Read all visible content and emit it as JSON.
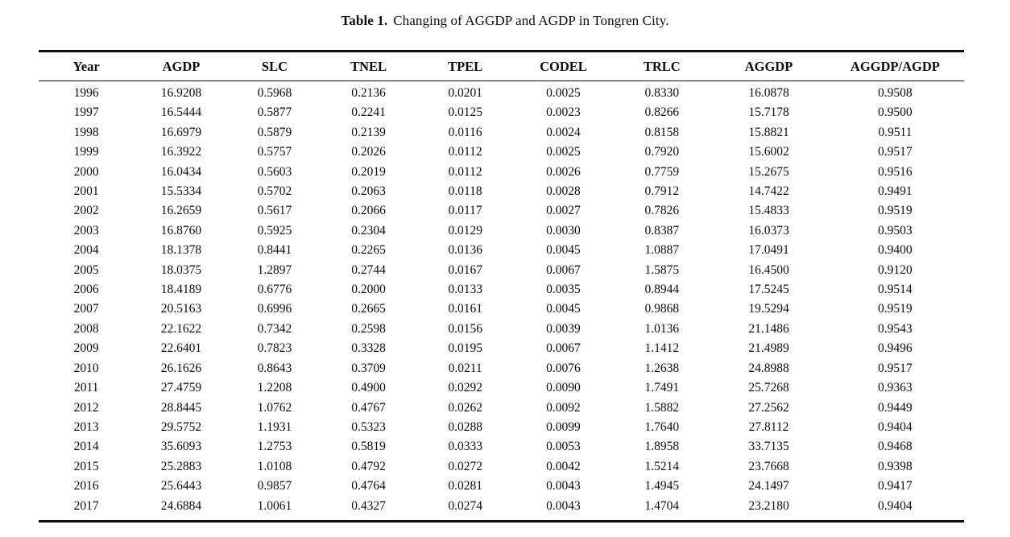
{
  "caption": {
    "label": "Table 1.",
    "text": "Changing of AGGDP and AGDP in Tongren City."
  },
  "table": {
    "columns": [
      "Year",
      "AGDP",
      "SLC",
      "TNEL",
      "TPEL",
      "CODEL",
      "TRLC",
      "AGGDP",
      "AGGDP/AGDP"
    ],
    "rows": [
      [
        "1996",
        "16.9208",
        "0.5968",
        "0.2136",
        "0.0201",
        "0.0025",
        "0.8330",
        "16.0878",
        "0.9508"
      ],
      [
        "1997",
        "16.5444",
        "0.5877",
        "0.2241",
        "0.0125",
        "0.0023",
        "0.8266",
        "15.7178",
        "0.9500"
      ],
      [
        "1998",
        "16.6979",
        "0.5879",
        "0.2139",
        "0.0116",
        "0.0024",
        "0.8158",
        "15.8821",
        "0.9511"
      ],
      [
        "1999",
        "16.3922",
        "0.5757",
        "0.2026",
        "0.0112",
        "0.0025",
        "0.7920",
        "15.6002",
        "0.9517"
      ],
      [
        "2000",
        "16.0434",
        "0.5603",
        "0.2019",
        "0.0112",
        "0.0026",
        "0.7759",
        "15.2675",
        "0.9516"
      ],
      [
        "2001",
        "15.5334",
        "0.5702",
        "0.2063",
        "0.0118",
        "0.0028",
        "0.7912",
        "14.7422",
        "0.9491"
      ],
      [
        "2002",
        "16.2659",
        "0.5617",
        "0.2066",
        "0.0117",
        "0.0027",
        "0.7826",
        "15.4833",
        "0.9519"
      ],
      [
        "2003",
        "16.8760",
        "0.5925",
        "0.2304",
        "0.0129",
        "0.0030",
        "0.8387",
        "16.0373",
        "0.9503"
      ],
      [
        "2004",
        "18.1378",
        "0.8441",
        "0.2265",
        "0.0136",
        "0.0045",
        "1.0887",
        "17.0491",
        "0.9400"
      ],
      [
        "2005",
        "18.0375",
        "1.2897",
        "0.2744",
        "0.0167",
        "0.0067",
        "1.5875",
        "16.4500",
        "0.9120"
      ],
      [
        "2006",
        "18.4189",
        "0.6776",
        "0.2000",
        "0.0133",
        "0.0035",
        "0.8944",
        "17.5245",
        "0.9514"
      ],
      [
        "2007",
        "20.5163",
        "0.6996",
        "0.2665",
        "0.0161",
        "0.0045",
        "0.9868",
        "19.5294",
        "0.9519"
      ],
      [
        "2008",
        "22.1622",
        "0.7342",
        "0.2598",
        "0.0156",
        "0.0039",
        "1.0136",
        "21.1486",
        "0.9543"
      ],
      [
        "2009",
        "22.6401",
        "0.7823",
        "0.3328",
        "0.0195",
        "0.0067",
        "1.1412",
        "21.4989",
        "0.9496"
      ],
      [
        "2010",
        "26.1626",
        "0.8643",
        "0.3709",
        "0.0211",
        "0.0076",
        "1.2638",
        "24.8988",
        "0.9517"
      ],
      [
        "2011",
        "27.4759",
        "1.2208",
        "0.4900",
        "0.0292",
        "0.0090",
        "1.7491",
        "25.7268",
        "0.9363"
      ],
      [
        "2012",
        "28.8445",
        "1.0762",
        "0.4767",
        "0.0262",
        "0.0092",
        "1.5882",
        "27.2562",
        "0.9449"
      ],
      [
        "2013",
        "29.5752",
        "1.1931",
        "0.5323",
        "0.0288",
        "0.0099",
        "1.7640",
        "27.8112",
        "0.9404"
      ],
      [
        "2014",
        "35.6093",
        "1.2753",
        "0.5819",
        "0.0333",
        "0.0053",
        "1.8958",
        "33.7135",
        "0.9468"
      ],
      [
        "2015",
        "25.2883",
        "1.0108",
        "0.4792",
        "0.0272",
        "0.0042",
        "1.5214",
        "23.7668",
        "0.9398"
      ],
      [
        "2016",
        "25.6443",
        "0.9857",
        "0.4764",
        "0.0281",
        "0.0043",
        "1.4945",
        "24.1497",
        "0.9417"
      ],
      [
        "2017",
        "24.6884",
        "1.0061",
        "0.4327",
        "0.0274",
        "0.0043",
        "1.4704",
        "23.2180",
        "0.9404"
      ]
    ]
  },
  "colors": {
    "text": "#0d0d0d",
    "background": "#ffffff",
    "rule": "#0d0d0d"
  }
}
